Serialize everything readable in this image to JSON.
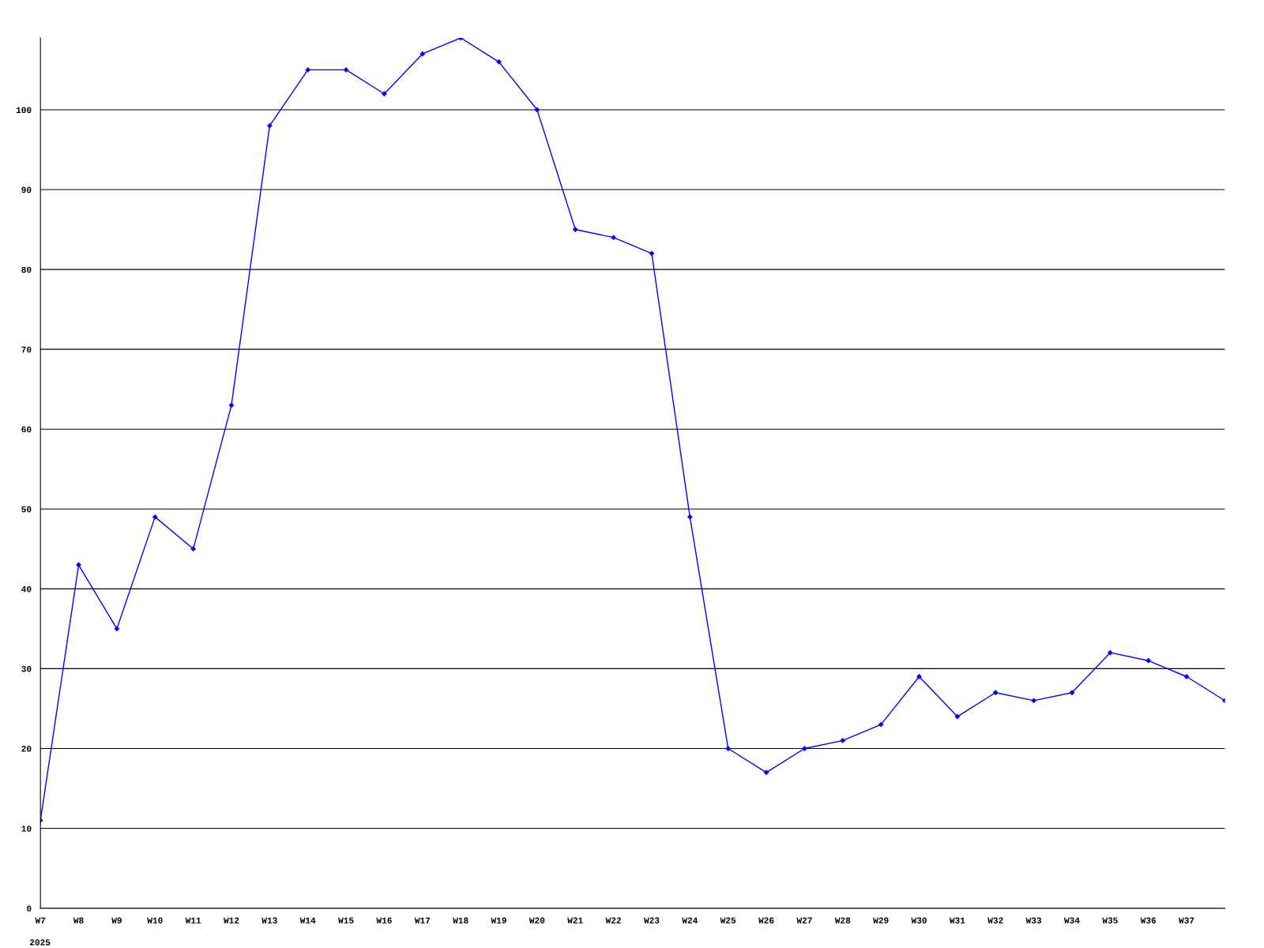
{
  "chart_data": {
    "type": "line",
    "categories": [
      "W7",
      "W8",
      "W9",
      "W10",
      "W11",
      "W12",
      "W13",
      "W14",
      "W15",
      "W16",
      "W17",
      "W18",
      "W19",
      "W20",
      "W21",
      "W22",
      "W23",
      "W24",
      "W25",
      "W26",
      "W27",
      "W28",
      "W29",
      "W30",
      "W31",
      "W32",
      "W33",
      "W34",
      "W35",
      "W36",
      "W37",
      null
    ],
    "series": [
      {
        "color": "#0000ff",
        "values": [
          11,
          43,
          35,
          49,
          45,
          63,
          98,
          105,
          105,
          102,
          107,
          109,
          106,
          100,
          85,
          84,
          82,
          49,
          20,
          17,
          20,
          21,
          23,
          29,
          24,
          27,
          26,
          27,
          32,
          31,
          29,
          26
        ]
      }
    ],
    "ylim": [
      0,
      109
    ],
    "yticks": [
      0,
      10,
      20,
      30,
      40,
      50,
      60,
      70,
      80,
      90,
      100
    ],
    "grid": "y",
    "marker": "diamond",
    "line_style": "solid",
    "annotations": [
      "2025"
    ]
  }
}
